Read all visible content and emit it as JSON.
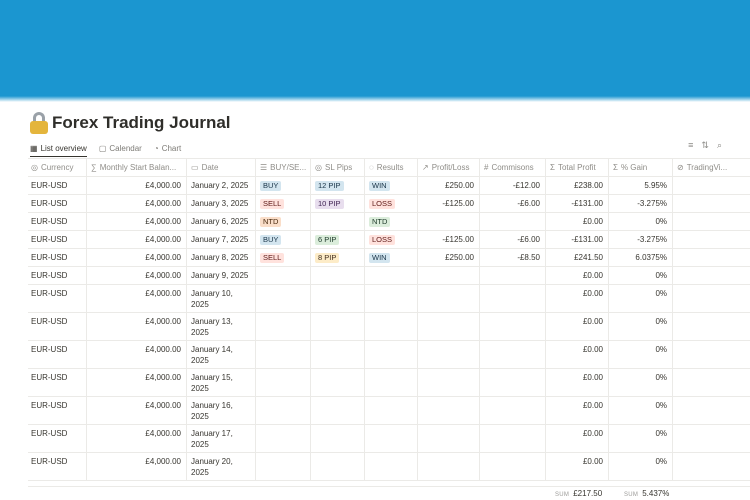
{
  "page": {
    "title": "Forex Trading Journal",
    "cover_color": "#1b96d0"
  },
  "views": [
    {
      "label": "List overview",
      "icon": "table-icon",
      "active": true
    },
    {
      "label": "Calendar",
      "icon": "calendar-icon"
    },
    {
      "label": "Chart",
      "icon": "chart-icon"
    }
  ],
  "columns": [
    {
      "label": "Currency",
      "icon": "select-icon"
    },
    {
      "label": "Monthly Start Balan...",
      "icon": "formula-icon"
    },
    {
      "label": "Date",
      "icon": "date-icon"
    },
    {
      "label": "BUY/SE...",
      "icon": "multi-select-icon"
    },
    {
      "label": "SL Pips",
      "icon": "select-icon"
    },
    {
      "label": "Results",
      "icon": "status-icon"
    },
    {
      "label": "Profit/Loss",
      "icon": "link-icon"
    },
    {
      "label": "Commisons",
      "icon": "number-icon"
    },
    {
      "label": "Total Profit",
      "icon": "sigma-icon"
    },
    {
      "label": "% Gain",
      "icon": "sigma-icon"
    },
    {
      "label": "TradingVi...",
      "icon": "url-icon"
    }
  ],
  "rows": [
    {
      "currency": "EUR-USD",
      "balance": "£4,000.00",
      "date1": "January 2, 2025",
      "date2": "",
      "side": "BUY",
      "side_color": "blue",
      "pips": "12 PIP",
      "pips_color": "blue",
      "result": "WIN",
      "result_color": "blue",
      "pl": "£250.00",
      "comm": "-£12.00",
      "total": "£238.00",
      "gain": "5.95%"
    },
    {
      "currency": "EUR-USD",
      "balance": "£4,000.00",
      "date1": "January 3, 2025",
      "date2": "",
      "side": "SELL",
      "side_color": "red",
      "pips": "10 PIP",
      "pips_color": "purple",
      "result": "LOSS",
      "result_color": "red",
      "pl": "-£125.00",
      "comm": "-£6.00",
      "total": "-£131.00",
      "gain": "-3.275%"
    },
    {
      "currency": "EUR-USD",
      "balance": "£4,000.00",
      "date1": "January 6, 2025",
      "date2": "",
      "side": "NTD",
      "side_color": "orange",
      "pips": "",
      "pips_color": "",
      "result": "NTD",
      "result_color": "green",
      "pl": "",
      "comm": "",
      "total": "£0.00",
      "gain": "0%"
    },
    {
      "currency": "EUR-USD",
      "balance": "£4,000.00",
      "date1": "January 7, 2025",
      "date2": "",
      "side": "BUY",
      "side_color": "blue",
      "pips": "6 PIP",
      "pips_color": "green",
      "result": "LOSS",
      "result_color": "red",
      "pl": "-£125.00",
      "comm": "-£6.00",
      "total": "-£131.00",
      "gain": "-3.275%"
    },
    {
      "currency": "EUR-USD",
      "balance": "£4,000.00",
      "date1": "January 8, 2025",
      "date2": "",
      "side": "SELL",
      "side_color": "red",
      "pips": "8 PIP",
      "pips_color": "yellow",
      "result": "WIN",
      "result_color": "blue",
      "pl": "£250.00",
      "comm": "-£8.50",
      "total": "£241.50",
      "gain": "6.0375%"
    },
    {
      "currency": "EUR-USD",
      "balance": "£4,000.00",
      "date1": "January 9, 2025",
      "date2": "",
      "side": "",
      "side_color": "",
      "pips": "",
      "pips_color": "",
      "result": "",
      "result_color": "",
      "pl": "",
      "comm": "",
      "total": "£0.00",
      "gain": "0%"
    },
    {
      "currency": "EUR-USD",
      "balance": "£4,000.00",
      "date1": "January 10,",
      "date2": "2025",
      "side": "",
      "side_color": "",
      "pips": "",
      "pips_color": "",
      "result": "",
      "result_color": "",
      "pl": "",
      "comm": "",
      "total": "£0.00",
      "gain": "0%"
    },
    {
      "currency": "EUR-USD",
      "balance": "£4,000.00",
      "date1": "January 13,",
      "date2": "2025",
      "side": "",
      "side_color": "",
      "pips": "",
      "pips_color": "",
      "result": "",
      "result_color": "",
      "pl": "",
      "comm": "",
      "total": "£0.00",
      "gain": "0%"
    },
    {
      "currency": "EUR-USD",
      "balance": "£4,000.00",
      "date1": "January 14,",
      "date2": "2025",
      "side": "",
      "side_color": "",
      "pips": "",
      "pips_color": "",
      "result": "",
      "result_color": "",
      "pl": "",
      "comm": "",
      "total": "£0.00",
      "gain": "0%"
    },
    {
      "currency": "EUR-USD",
      "balance": "£4,000.00",
      "date1": "January 15,",
      "date2": "2025",
      "side": "",
      "side_color": "",
      "pips": "",
      "pips_color": "",
      "result": "",
      "result_color": "",
      "pl": "",
      "comm": "",
      "total": "£0.00",
      "gain": "0%"
    },
    {
      "currency": "EUR-USD",
      "balance": "£4,000.00",
      "date1": "January 16,",
      "date2": "2025",
      "side": "",
      "side_color": "",
      "pips": "",
      "pips_color": "",
      "result": "",
      "result_color": "",
      "pl": "",
      "comm": "",
      "total": "£0.00",
      "gain": "0%"
    },
    {
      "currency": "EUR-USD",
      "balance": "£4,000.00",
      "date1": "January 17,",
      "date2": "2025",
      "side": "",
      "side_color": "",
      "pips": "",
      "pips_color": "",
      "result": "",
      "result_color": "",
      "pl": "",
      "comm": "",
      "total": "£0.00",
      "gain": "0%"
    },
    {
      "currency": "EUR-USD",
      "balance": "£4,000.00",
      "date1": "January 20,",
      "date2": "2025",
      "side": "",
      "side_color": "",
      "pips": "",
      "pips_color": "",
      "result": "",
      "result_color": "",
      "pl": "",
      "comm": "",
      "total": "£0.00",
      "gain": "0%"
    }
  ],
  "summary": {
    "sum_label": "SUM",
    "total_profit": "£217.50",
    "gain": "5.437%"
  }
}
